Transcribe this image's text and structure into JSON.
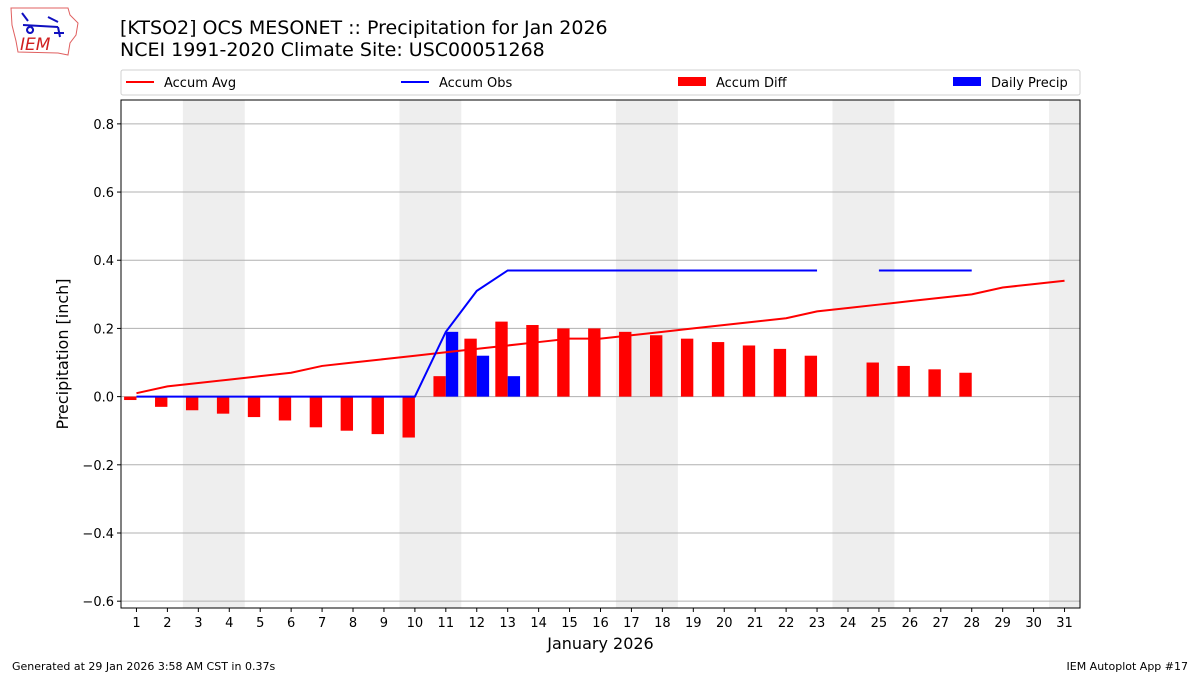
{
  "header": {
    "title": "[KTSO2] OCS MESONET :: Precipitation for Jan 2026",
    "subtitle": "NCEI 1991-2020 Climate Site: USC00051268",
    "logo_text": "IEM"
  },
  "footer": {
    "left": "Generated at 29 Jan 2026 3:58 AM CST in 0.37s",
    "right": "IEM Autoplot App #17"
  },
  "chart_data": {
    "type": "bar",
    "xlabel": "January 2026",
    "ylabel": "Precipitation [inch]",
    "xlim": [
      0.5,
      31.5
    ],
    "ylim": [
      -0.62,
      0.87
    ],
    "yticks": [
      -0.6,
      -0.4,
      -0.2,
      0.0,
      0.2,
      0.4,
      0.6,
      0.8
    ],
    "ytick_labels": [
      "−0.6",
      "−0.4",
      "−0.2",
      "0.0",
      "0.2",
      "0.4",
      "0.6",
      "0.8"
    ],
    "x": [
      1,
      2,
      3,
      4,
      5,
      6,
      7,
      8,
      9,
      10,
      11,
      12,
      13,
      14,
      15,
      16,
      17,
      18,
      19,
      20,
      21,
      22,
      23,
      24,
      25,
      26,
      27,
      28,
      29,
      30,
      31
    ],
    "grid": "y",
    "legend_placement": "top",
    "weekend_shading": [
      [
        2.5,
        4.5
      ],
      [
        9.5,
        11.5
      ],
      [
        16.5,
        18.5
      ],
      [
        23.5,
        25.5
      ],
      [
        30.5,
        31.5
      ]
    ],
    "series": [
      {
        "name": "Accum Avg",
        "kind": "line",
        "color": "#ff0000",
        "values": [
          0.01,
          0.03,
          0.04,
          0.05,
          0.06,
          0.07,
          0.09,
          0.1,
          0.11,
          0.12,
          0.13,
          0.14,
          0.15,
          0.16,
          0.17,
          0.17,
          0.18,
          0.19,
          0.2,
          0.21,
          0.22,
          0.23,
          0.25,
          0.26,
          0.27,
          0.28,
          0.29,
          0.3,
          0.32,
          0.33,
          0.34
        ]
      },
      {
        "name": "Accum Obs",
        "kind": "line",
        "color": "#0000ff",
        "values": [
          0,
          0,
          0,
          0,
          0,
          0,
          0,
          0,
          0,
          0,
          0.19,
          0.31,
          0.37,
          0.37,
          0.37,
          0.37,
          0.37,
          0.37,
          0.37,
          0.37,
          0.37,
          0.37,
          0.37,
          null,
          0.37,
          0.37,
          0.37,
          0.37,
          null,
          null,
          null
        ]
      },
      {
        "name": "Accum Diff",
        "kind": "bar",
        "color": "#ff0000",
        "values": [
          -0.01,
          -0.03,
          -0.04,
          -0.05,
          -0.06,
          -0.07,
          -0.09,
          -0.1,
          -0.11,
          -0.12,
          0.06,
          0.17,
          0.22,
          0.21,
          0.2,
          0.2,
          0.19,
          0.18,
          0.17,
          0.16,
          0.15,
          0.14,
          0.12,
          null,
          0.1,
          0.09,
          0.08,
          0.07,
          null,
          null,
          null
        ]
      },
      {
        "name": "Daily Precip",
        "kind": "bar",
        "color": "#0000ff",
        "values": [
          0,
          0,
          0,
          0,
          0,
          0,
          0,
          0,
          0,
          0,
          0.19,
          0.12,
          0.06,
          0,
          0,
          0,
          0,
          0,
          0,
          0,
          0,
          0,
          0,
          null,
          0,
          0,
          0,
          0,
          null,
          null,
          null
        ]
      }
    ]
  }
}
